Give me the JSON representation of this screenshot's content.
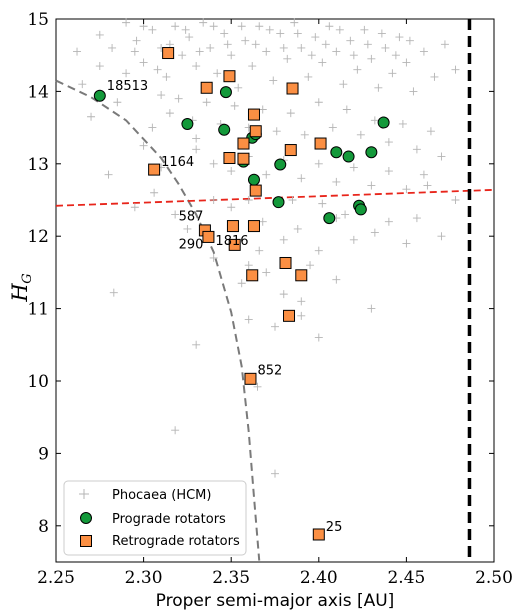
{
  "chart_data": {
    "type": "scatter",
    "xlabel": "Proper semi-major axis [AU]",
    "ylabel": "H",
    "ylabel_sub": "G",
    "xlim": [
      2.25,
      2.5
    ],
    "ylim": [
      7.5,
      15
    ],
    "y_inverted": false,
    "grid": false,
    "legend_position": "bottom-left",
    "xticks": [
      "2.25",
      "2.30",
      "2.35",
      "2.40",
      "2.45",
      "2.50"
    ],
    "yticks": [
      "8",
      "9",
      "10",
      "11",
      "12",
      "13",
      "14",
      "15"
    ],
    "legend": {
      "hcm": "Phocaea (HCM)",
      "prograde": "Prograde rotators",
      "retrograde": "Retrograde rotators"
    },
    "colors": {
      "hcm": "#b4b4b4",
      "prograde": "#13993a",
      "retrograde": "#fb8f43",
      "red_line": "#e8251b",
      "gray_curve": "#7a7a7a",
      "black_line": "#000000"
    },
    "lines": {
      "red_dashed": [
        [
          2.25,
          12.42
        ],
        [
          2.5,
          12.64
        ]
      ],
      "black_dashed_x": 2.486,
      "gray_curve": [
        [
          2.25,
          14.15
        ],
        [
          2.27,
          13.92
        ],
        [
          2.29,
          13.6
        ],
        [
          2.31,
          13.08
        ],
        [
          2.32,
          12.72
        ],
        [
          2.33,
          12.3
        ],
        [
          2.34,
          11.78
        ],
        [
          2.35,
          10.95
        ],
        [
          2.356,
          10.2
        ],
        [
          2.36,
          9.3
        ],
        [
          2.363,
          8.4
        ],
        [
          2.366,
          7.52
        ]
      ]
    },
    "hcm_series": {
      "name": "Phocaea (HCM)",
      "points": [
        [
          2.262,
          14.55
        ],
        [
          2.275,
          14.78
        ],
        [
          2.282,
          14.6
        ],
        [
          2.29,
          14.95
        ],
        [
          2.296,
          14.7
        ],
        [
          2.3,
          14.4
        ],
        [
          2.305,
          14.85
        ],
        [
          2.31,
          14.6
        ],
        [
          2.313,
          14.2
        ],
        [
          2.318,
          14.9
        ],
        [
          2.322,
          14.5
        ],
        [
          2.326,
          14.75
        ],
        [
          2.33,
          14.35
        ],
        [
          2.334,
          14.95
        ],
        [
          2.338,
          14.6
        ],
        [
          2.342,
          14.25
        ],
        [
          2.346,
          14.8
        ],
        [
          2.35,
          14.5
        ],
        [
          2.354,
          14.05
        ],
        [
          2.358,
          14.7
        ],
        [
          2.362,
          14.35
        ],
        [
          2.366,
          14.9
        ],
        [
          2.37,
          14.55
        ],
        [
          2.374,
          14.15
        ],
        [
          2.378,
          14.8
        ],
        [
          2.382,
          14.45
        ],
        [
          2.386,
          14.95
        ],
        [
          2.39,
          14.6
        ],
        [
          2.394,
          14.2
        ],
        [
          2.398,
          14.75
        ],
        [
          2.402,
          14.4
        ],
        [
          2.406,
          14.9
        ],
        [
          2.41,
          14.55
        ],
        [
          2.414,
          14.1
        ],
        [
          2.418,
          14.7
        ],
        [
          2.422,
          14.3
        ],
        [
          2.426,
          14.85
        ],
        [
          2.43,
          14.45
        ],
        [
          2.434,
          14.05
        ],
        [
          2.438,
          14.6
        ],
        [
          2.442,
          14.25
        ],
        [
          2.446,
          14.75
        ],
        [
          2.45,
          14.4
        ],
        [
          2.454,
          14.0
        ],
        [
          2.46,
          14.55
        ],
        [
          2.466,
          14.2
        ],
        [
          2.472,
          14.65
        ],
        [
          2.478,
          14.3
        ],
        [
          2.295,
          14.55
        ],
        [
          2.3,
          14.9
        ],
        [
          2.308,
          14.3
        ],
        [
          2.315,
          14.65
        ],
        [
          2.324,
          14.85
        ],
        [
          2.332,
          14.55
        ],
        [
          2.34,
          14.9
        ],
        [
          2.348,
          14.65
        ],
        [
          2.356,
          14.9
        ],
        [
          2.364,
          14.65
        ],
        [
          2.372,
          14.85
        ],
        [
          2.38,
          14.6
        ],
        [
          2.388,
          14.8
        ],
        [
          2.396,
          14.5
        ],
        [
          2.404,
          14.65
        ],
        [
          2.412,
          14.85
        ],
        [
          2.42,
          14.5
        ],
        [
          2.428,
          14.65
        ],
        [
          2.436,
          14.8
        ],
        [
          2.444,
          14.5
        ],
        [
          2.452,
          14.7
        ],
        [
          2.32,
          13.9
        ],
        [
          2.328,
          13.6
        ],
        [
          2.336,
          13.85
        ],
        [
          2.344,
          13.55
        ],
        [
          2.352,
          13.8
        ],
        [
          2.36,
          13.5
        ],
        [
          2.368,
          13.75
        ],
        [
          2.376,
          13.45
        ],
        [
          2.384,
          13.7
        ],
        [
          2.392,
          13.4
        ],
        [
          2.4,
          13.85
        ],
        [
          2.408,
          13.5
        ],
        [
          2.416,
          13.75
        ],
        [
          2.424,
          13.4
        ],
        [
          2.432,
          13.6
        ],
        [
          2.44,
          13.3
        ],
        [
          2.448,
          13.55
        ],
        [
          2.456,
          13.2
        ],
        [
          2.464,
          13.45
        ],
        [
          2.47,
          13.1
        ],
        [
          2.33,
          13.2
        ],
        [
          2.34,
          13.0
        ],
        [
          2.35,
          12.9
        ],
        [
          2.36,
          13.1
        ],
        [
          2.37,
          12.85
        ],
        [
          2.38,
          13.05
        ],
        [
          2.39,
          12.8
        ],
        [
          2.4,
          13.0
        ],
        [
          2.41,
          12.75
        ],
        [
          2.42,
          12.95
        ],
        [
          2.43,
          12.7
        ],
        [
          2.44,
          12.9
        ],
        [
          2.45,
          12.65
        ],
        [
          2.46,
          12.85
        ],
        [
          2.478,
          12.5
        ],
        [
          2.31,
          13.95
        ],
        [
          2.29,
          14.25
        ],
        [
          2.285,
          13.85
        ],
        [
          2.27,
          13.65
        ],
        [
          2.265,
          14.1
        ],
        [
          2.275,
          14.35
        ],
        [
          2.28,
          12.85
        ],
        [
          2.306,
          12.6
        ],
        [
          2.318,
          12.3
        ],
        [
          2.368,
          12.2
        ],
        [
          2.388,
          12.1
        ],
        [
          2.402,
          12.45
        ],
        [
          2.432,
          12.05
        ],
        [
          2.41,
          12.25
        ],
        [
          2.366,
          11.8
        ],
        [
          2.395,
          11.6
        ],
        [
          2.356,
          11.35
        ],
        [
          2.39,
          11.1
        ],
        [
          2.375,
          10.75
        ],
        [
          2.41,
          11.4
        ],
        [
          2.42,
          11.95
        ],
        [
          2.43,
          11.0
        ],
        [
          2.283,
          11.22
        ],
        [
          2.34,
          11.7
        ],
        [
          2.36,
          10.85
        ],
        [
          2.33,
          10.5
        ],
        [
          2.318,
          9.32
        ],
        [
          2.375,
          8.72
        ],
        [
          2.365,
          9.92
        ],
        [
          2.4,
          10.6
        ],
        [
          2.4,
          11.8
        ],
        [
          2.456,
          12.25
        ],
        [
          2.462,
          12.7
        ],
        [
          2.47,
          12.0
        ],
        [
          2.36,
          12.5
        ],
        [
          2.35,
          12.4
        ],
        [
          2.31,
          12.95
        ],
        [
          2.3,
          13.25
        ],
        [
          2.305,
          13.5
        ],
        [
          2.295,
          12.4
        ],
        [
          2.315,
          13.7
        ],
        [
          2.33,
          13.35
        ],
        [
          2.34,
          12.5
        ],
        [
          2.325,
          12.1
        ],
        [
          2.38,
          11.95
        ],
        [
          2.385,
          12.5
        ],
        [
          2.415,
          12.3
        ],
        [
          2.44,
          12.2
        ],
        [
          2.45,
          11.9
        ],
        [
          2.35,
          11.9
        ],
        [
          2.37,
          11.5
        ],
        [
          2.38,
          11.2
        ],
        [
          2.39,
          10.9
        ],
        [
          2.36,
          11.6
        ]
      ]
    },
    "prograde_series": {
      "name": "Prograde rotators",
      "points": [
        [
          2.275,
          13.94
        ],
        [
          2.325,
          13.55
        ],
        [
          2.347,
          13.99
        ],
        [
          2.346,
          13.47
        ],
        [
          2.357,
          13.03
        ],
        [
          2.362,
          13.36
        ],
        [
          2.364,
          13.41
        ],
        [
          2.363,
          12.78
        ],
        [
          2.377,
          12.47
        ],
        [
          2.378,
          12.99
        ],
        [
          2.406,
          12.25
        ],
        [
          2.41,
          13.16
        ],
        [
          2.417,
          13.1
        ],
        [
          2.423,
          12.42
        ],
        [
          2.424,
          12.37
        ],
        [
          2.43,
          13.16
        ],
        [
          2.437,
          13.57
        ]
      ]
    },
    "retrograde_series": {
      "name": "Retrograde rotators",
      "points": [
        [
          2.314,
          14.53
        ],
        [
          2.336,
          14.05
        ],
        [
          2.349,
          14.21
        ],
        [
          2.363,
          13.68
        ],
        [
          2.385,
          14.04
        ],
        [
          2.364,
          13.45
        ],
        [
          2.357,
          13.28
        ],
        [
          2.349,
          13.08
        ],
        [
          2.357,
          13.07
        ],
        [
          2.384,
          13.19
        ],
        [
          2.401,
          13.28
        ],
        [
          2.306,
          12.92
        ],
        [
          2.364,
          12.63
        ],
        [
          2.335,
          12.08
        ],
        [
          2.337,
          11.99
        ],
        [
          2.351,
          12.14
        ],
        [
          2.352,
          11.88
        ],
        [
          2.363,
          12.14
        ],
        [
          2.362,
          11.46
        ],
        [
          2.381,
          11.63
        ],
        [
          2.39,
          11.46
        ],
        [
          2.383,
          10.9
        ],
        [
          2.361,
          10.03
        ],
        [
          2.4,
          7.88
        ]
      ]
    },
    "annotations": [
      {
        "text": "18513",
        "x": 2.279,
        "y": 14.02
      },
      {
        "text": "1164",
        "x": 2.31,
        "y": 12.97
      },
      {
        "text": "587",
        "x": 2.32,
        "y": 12.22
      },
      {
        "text": "290",
        "x": 2.32,
        "y": 11.83
      },
      {
        "text": "1816",
        "x": 2.341,
        "y": 11.88
      },
      {
        "text": "852",
        "x": 2.365,
        "y": 10.09
      },
      {
        "text": "25",
        "x": 2.404,
        "y": 7.93
      }
    ]
  }
}
